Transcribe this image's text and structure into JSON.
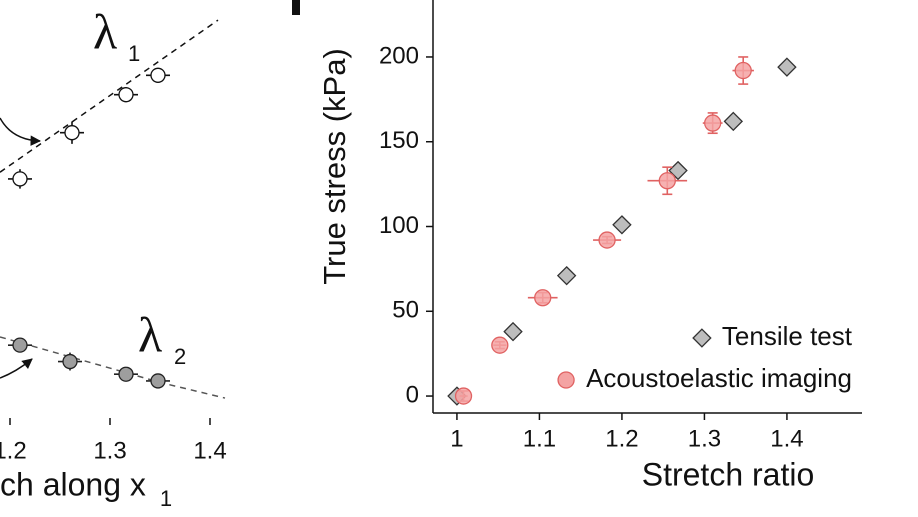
{
  "chart_data": [
    {
      "type": "scatter",
      "xlabel": "ch along x",
      "xlabel_sub": "1",
      "annotations": [
        {
          "text": "λ",
          "sub": "1"
        },
        {
          "text": "λ",
          "sub": "2"
        }
      ],
      "xlim": [
        1.19,
        1.41
      ],
      "xticks": [
        1.2,
        1.3,
        1.4
      ],
      "ylim": [
        0.9,
        1.45
      ],
      "series": [
        {
          "color": "#ffffff",
          "stroke": "#111111",
          "marker": "circle",
          "x": [
            1.21,
            1.262,
            1.316,
            1.348
          ],
          "values": [
            1.21,
            1.272,
            1.323,
            1.349
          ],
          "xerr": [
            0.012,
            0.012,
            0.012,
            0.012
          ],
          "yerr": [
            0.013,
            0.015,
            0.01,
            0.01
          ]
        },
        {
          "color": "#9e9e9e",
          "stroke": "#222222",
          "marker": "circle",
          "x": [
            1.21,
            1.26,
            1.316,
            1.348
          ],
          "values": [
            0.987,
            0.965,
            0.948,
            0.939
          ],
          "xerr": [
            0.012,
            0.012,
            0.012,
            0.012
          ],
          "yerr": [
            0.006,
            0.012,
            0.006,
            0.005
          ]
        }
      ],
      "lines": [
        {
          "color": "#111111",
          "x": [
            1.19,
            1.408
          ],
          "values": [
            1.219,
            1.423
          ]
        },
        {
          "color": "#555555",
          "x": [
            1.19,
            1.29,
            1.35,
            1.415
          ],
          "values": [
            0.998,
            0.96,
            0.937,
            0.916
          ]
        }
      ]
    },
    {
      "type": "scatter",
      "xlabel": "Stretch ratio",
      "ylabel": "True stress (kPa)",
      "xlim": [
        0.971,
        1.491
      ],
      "xticks": [
        1,
        1.1,
        1.2,
        1.3,
        1.4
      ],
      "ylim": [
        -10,
        233.6
      ],
      "yticks": [
        0,
        50,
        100,
        150,
        200
      ],
      "legend": "lower right",
      "series": [
        {
          "name": "Tensile test",
          "color": "#bdbdbd",
          "stroke": "#333333",
          "marker": "diamond",
          "x": [
            1.0,
            1.068,
            1.133,
            1.2,
            1.268,
            1.335,
            1.4
          ],
          "values": [
            0,
            38,
            71,
            101,
            133,
            162,
            194
          ]
        },
        {
          "name": "Acoustoelastic imaging",
          "color": "#f4a3a3",
          "stroke": "#e06262",
          "marker": "circle",
          "x": [
            1.008,
            1.052,
            1.104,
            1.182,
            1.255,
            1.31,
            1.347
          ],
          "values": [
            0,
            30,
            58,
            92,
            127,
            161,
            192
          ],
          "xerr": [
            0.005,
            0.008,
            0.018,
            0.017,
            0.024,
            0.012,
            0.013
          ],
          "yerr": [
            3,
            2,
            3,
            2,
            8,
            6,
            8
          ]
        }
      ]
    }
  ]
}
